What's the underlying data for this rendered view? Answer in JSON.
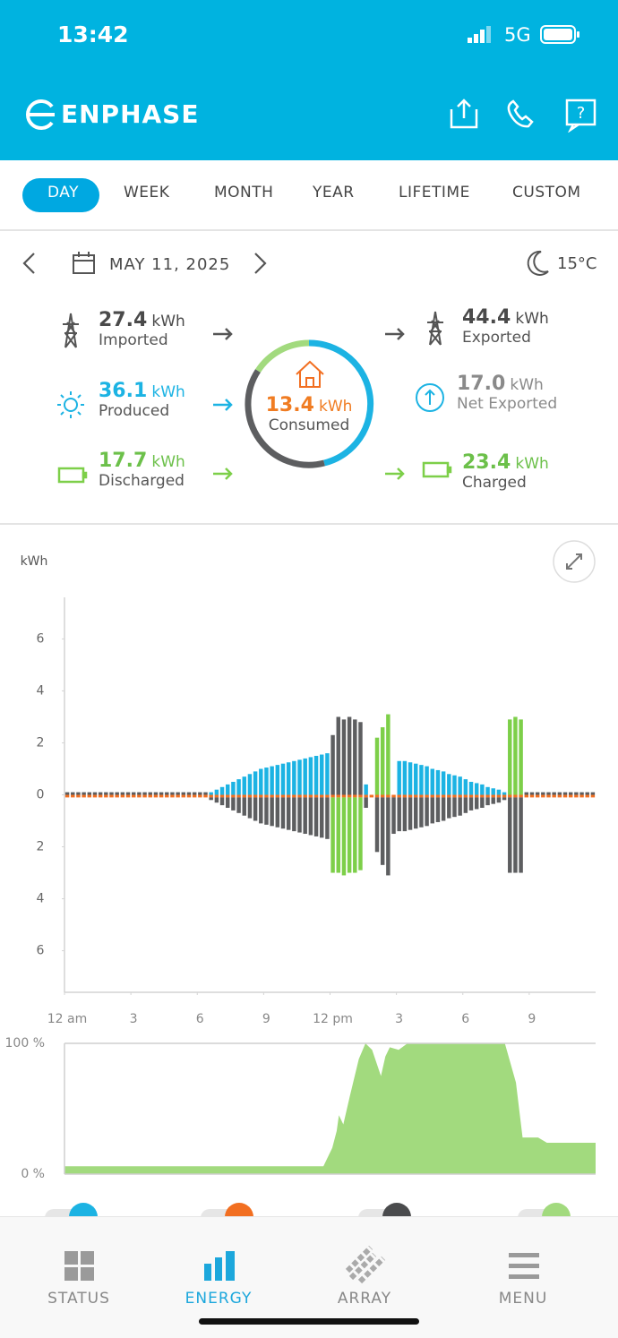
{
  "status_bar": {
    "time": "13:42",
    "network": "5G"
  },
  "header": {
    "brand": "ENPHASE"
  },
  "tabs": [
    "DAY",
    "WEEK",
    "MONTH",
    "YEAR",
    "LIFETIME",
    "CUSTOM"
  ],
  "date_nav": {
    "date": "MAY 11, 2025",
    "temperature": "15°C"
  },
  "summary": {
    "imported": {
      "value": "27.4",
      "unit": "kWh",
      "label": "Imported"
    },
    "produced": {
      "value": "36.1",
      "unit": "kWh",
      "label": "Produced"
    },
    "discharged": {
      "value": "17.7",
      "unit": "kWh",
      "label": "Discharged"
    },
    "consumed": {
      "value": "13.4",
      "unit": "kWh",
      "label": "Consumed"
    },
    "exported": {
      "value": "44.4",
      "unit": "kWh",
      "label": "Exported"
    },
    "net_exported": {
      "value": "17.0",
      "unit": "kWh",
      "label": "Net Exported"
    },
    "charged": {
      "value": "23.4",
      "unit": "kWh",
      "label": "Charged"
    }
  },
  "chart_data": [
    {
      "type": "bar",
      "stacked": true,
      "y_axis_label": "kWh",
      "x": [
        0,
        0.25,
        0.5,
        0.75,
        1,
        1.25,
        1.5,
        1.75,
        2,
        2.25,
        2.5,
        2.75,
        3,
        3.25,
        3.5,
        3.75,
        4,
        4.25,
        4.5,
        4.75,
        5,
        5.25,
        5.5,
        5.75,
        6,
        6.25,
        6.5,
        6.75,
        7,
        7.25,
        7.5,
        7.75,
        8,
        8.25,
        8.5,
        8.75,
        9,
        9.25,
        9.5,
        9.75,
        10,
        10.25,
        10.5,
        10.75,
        11,
        11.25,
        11.5,
        11.75,
        12,
        12.25,
        12.5,
        12.75,
        13,
        13.25,
        13.5,
        13.75,
        14,
        14.25,
        14.5,
        14.75,
        15,
        15.25,
        15.5,
        15.75,
        16,
        16.25,
        16.5,
        16.75,
        17,
        17.25,
        17.5,
        17.75,
        18,
        18.25,
        18.5,
        18.75,
        19,
        19.25,
        19.5,
        19.75,
        20,
        20.25,
        20.5,
        20.75,
        21,
        21.25,
        21.5,
        21.75,
        22,
        22.25,
        22.5,
        22.75,
        23,
        23.25,
        23.5,
        23.75
      ],
      "xlim": [
        0,
        24
      ],
      "xticks": [
        {
          "value": 0,
          "label": "12 am"
        },
        3,
        6,
        9,
        {
          "value": 12,
          "label": "12 pm"
        },
        {
          "value": 15,
          "label": "3"
        },
        {
          "value": 18,
          "label": "6"
        },
        {
          "value": 21,
          "label": "9"
        }
      ],
      "ylim": [
        -7.6,
        7.6
      ],
      "yticks": [
        6,
        4,
        2,
        0,
        {
          "value": -2,
          "label": "2"
        },
        {
          "value": -4,
          "label": "4"
        },
        {
          "value": -6,
          "label": "6"
        }
      ],
      "series": [
        {
          "color": "#1cb3e3",
          "values": [
            0,
            0,
            0,
            0,
            0,
            0,
            0,
            0,
            0,
            0,
            0,
            0,
            0,
            0,
            0,
            0,
            0,
            0,
            0,
            0,
            0,
            0,
            0,
            0,
            0,
            0,
            0.1,
            0.2,
            0.3,
            0.4,
            0.5,
            0.6,
            0.7,
            0.8,
            0.9,
            1.0,
            1.05,
            1.1,
            1.15,
            1.2,
            1.25,
            1.3,
            1.35,
            1.4,
            1.45,
            1.5,
            1.55,
            1.6,
            0,
            0,
            0,
            0,
            0,
            0,
            0.4,
            0,
            0,
            0,
            0,
            0,
            1.3,
            1.3,
            1.25,
            1.2,
            1.15,
            1.1,
            1.0,
            0.95,
            0.9,
            0.8,
            0.75,
            0.7,
            0.6,
            0.5,
            0.45,
            0.4,
            0.3,
            0.25,
            0.2,
            0.1,
            0,
            0,
            0,
            0,
            0,
            0,
            0,
            0,
            0,
            0,
            0,
            0,
            0,
            0,
            0,
            0
          ]
        },
        {
          "color": "#5d5e60",
          "values": [
            0.1,
            0.1,
            0.1,
            0.1,
            0.1,
            0.1,
            0.1,
            0.1,
            0.1,
            0.1,
            0.1,
            0.1,
            0.1,
            0.1,
            0.1,
            0.1,
            0.1,
            0.1,
            0.1,
            0.1,
            0.1,
            0.1,
            0.1,
            0.1,
            0.1,
            0.1,
            0,
            0,
            0,
            0,
            0,
            0,
            0,
            0,
            0,
            0,
            0,
            0,
            0,
            0,
            0,
            0,
            0,
            0,
            0,
            0,
            0,
            0,
            2.3,
            3.0,
            2.9,
            3.0,
            2.9,
            2.8,
            0,
            0,
            0,
            0,
            0,
            0,
            0,
            0,
            0,
            0,
            0,
            0,
            0,
            0,
            0,
            0,
            0,
            0,
            0,
            0,
            0,
            0,
            0,
            0,
            0,
            0,
            0,
            0,
            0,
            0.1,
            0.1,
            0.1,
            0.1,
            0.1,
            0.1,
            0.1,
            0.1,
            0.1,
            0.1,
            0.1,
            0.1,
            0.1
          ]
        },
        {
          "color": "#7dcf49",
          "values": [
            0,
            0,
            0,
            0,
            0,
            0,
            0,
            0,
            0,
            0,
            0,
            0,
            0,
            0,
            0,
            0,
            0,
            0,
            0,
            0,
            0,
            0,
            0,
            0,
            0,
            0,
            0,
            0,
            0,
            0,
            0,
            0,
            0,
            0,
            0,
            0,
            0,
            0,
            0,
            0,
            0,
            0,
            0,
            0,
            0,
            0,
            0,
            0,
            0,
            0,
            0,
            0,
            0,
            0,
            0,
            0,
            2.2,
            2.6,
            3.1,
            0,
            0,
            0,
            0,
            0,
            0,
            0,
            0,
            0,
            0,
            0,
            0,
            0,
            0,
            0,
            0,
            0,
            0,
            0,
            0,
            0,
            2.9,
            3.0,
            2.9,
            0,
            0,
            0,
            0,
            0,
            0,
            0,
            0,
            0,
            0,
            0,
            0,
            0
          ]
        },
        {
          "color": "#f26f21",
          "values": [
            -0.1,
            -0.1,
            -0.1,
            -0.1,
            -0.1,
            -0.1,
            -0.1,
            -0.1,
            -0.1,
            -0.1,
            -0.1,
            -0.1,
            -0.1,
            -0.1,
            -0.1,
            -0.1,
            -0.1,
            -0.1,
            -0.1,
            -0.1,
            -0.1,
            -0.1,
            -0.1,
            -0.1,
            -0.1,
            -0.1,
            -0.1,
            -0.1,
            -0.1,
            -0.1,
            -0.1,
            -0.1,
            -0.1,
            -0.1,
            -0.1,
            -0.1,
            -0.1,
            -0.1,
            -0.1,
            -0.1,
            -0.1,
            -0.1,
            -0.1,
            -0.1,
            -0.1,
            -0.1,
            -0.1,
            -0.1,
            -0.1,
            -0.1,
            -0.1,
            -0.1,
            -0.1,
            -0.1,
            -0.1,
            -0.1,
            -0.1,
            -0.1,
            -0.1,
            -0.1,
            -0.1,
            -0.1,
            -0.1,
            -0.1,
            -0.1,
            -0.1,
            -0.1,
            -0.1,
            -0.1,
            -0.1,
            -0.1,
            -0.1,
            -0.1,
            -0.1,
            -0.1,
            -0.1,
            -0.1,
            -0.1,
            -0.1,
            -0.1,
            -0.1,
            -0.1,
            -0.1,
            -0.1,
            -0.1,
            -0.1,
            -0.1,
            -0.1,
            -0.1,
            -0.1,
            -0.1,
            -0.1,
            -0.1,
            -0.1,
            -0.1,
            -0.1
          ]
        },
        {
          "color": "#5d5e60",
          "values": [
            0,
            0,
            0,
            0,
            0,
            0,
            0,
            0,
            0,
            0,
            0,
            0,
            0,
            0,
            0,
            0,
            0,
            0,
            0,
            0,
            0,
            0,
            0,
            0,
            0,
            0,
            -0.1,
            -0.2,
            -0.3,
            -0.4,
            -0.5,
            -0.6,
            -0.7,
            -0.8,
            -0.9,
            -1.0,
            -1.05,
            -1.1,
            -1.15,
            -1.2,
            -1.25,
            -1.3,
            -1.35,
            -1.4,
            -1.45,
            -1.5,
            -1.55,
            -1.6,
            0,
            0,
            0,
            0,
            0,
            0,
            -0.4,
            0,
            -2.1,
            -2.6,
            -3.0,
            -1.4,
            -1.3,
            -1.3,
            -1.25,
            -1.2,
            -1.15,
            -1.1,
            -1.0,
            -0.95,
            -0.9,
            -0.8,
            -0.75,
            -0.7,
            -0.6,
            -0.5,
            -0.45,
            -0.4,
            -0.3,
            -0.25,
            -0.2,
            -0.1,
            -2.9,
            -2.9,
            -2.9,
            0,
            0,
            0,
            0,
            0,
            0,
            0,
            0,
            0,
            0,
            0,
            0,
            0
          ]
        },
        {
          "color": "#7dcf49",
          "values": [
            0,
            0,
            0,
            0,
            0,
            0,
            0,
            0,
            0,
            0,
            0,
            0,
            0,
            0,
            0,
            0,
            0,
            0,
            0,
            0,
            0,
            0,
            0,
            0,
            0,
            0,
            0,
            0,
            0,
            0,
            0,
            0,
            0,
            0,
            0,
            0,
            0,
            0,
            0,
            0,
            0,
            0,
            0,
            0,
            0,
            0,
            0,
            0,
            -2.9,
            -2.9,
            -3.0,
            -2.9,
            -2.9,
            -2.8,
            0,
            0,
            0,
            0,
            0,
            0,
            0,
            0,
            0,
            0,
            0,
            0,
            0,
            0,
            0,
            0,
            0,
            0,
            0,
            0,
            0,
            0,
            0,
            0,
            0,
            0,
            0,
            0,
            0,
            0,
            0,
            0,
            0,
            0,
            0,
            0,
            0,
            0,
            0,
            0,
            0,
            0
          ]
        }
      ]
    },
    {
      "type": "area",
      "color": "#a2da7e",
      "x": [
        0,
        11.7,
        12.1,
        12.3,
        12.4,
        12.6,
        12.9,
        13.3,
        13.6,
        13.9,
        14.3,
        14.5,
        14.7,
        15.1,
        15.5,
        19.9,
        20.4,
        20.7,
        21.4,
        21.8,
        24
      ],
      "values": [
        6,
        6,
        20,
        33,
        45,
        38,
        60,
        88,
        100,
        95,
        75,
        90,
        97,
        95,
        100,
        100,
        70,
        28,
        28,
        24,
        24
      ],
      "xlim": [
        0,
        24
      ],
      "ylim": [
        0,
        100
      ],
      "yticks": [
        {
          "value": 0,
          "label": "0 %"
        },
        {
          "value": 100,
          "label": "100 %"
        }
      ]
    }
  ],
  "bottom_nav": [
    "STATUS",
    "ENERGY",
    "ARRAY",
    "MENU"
  ]
}
